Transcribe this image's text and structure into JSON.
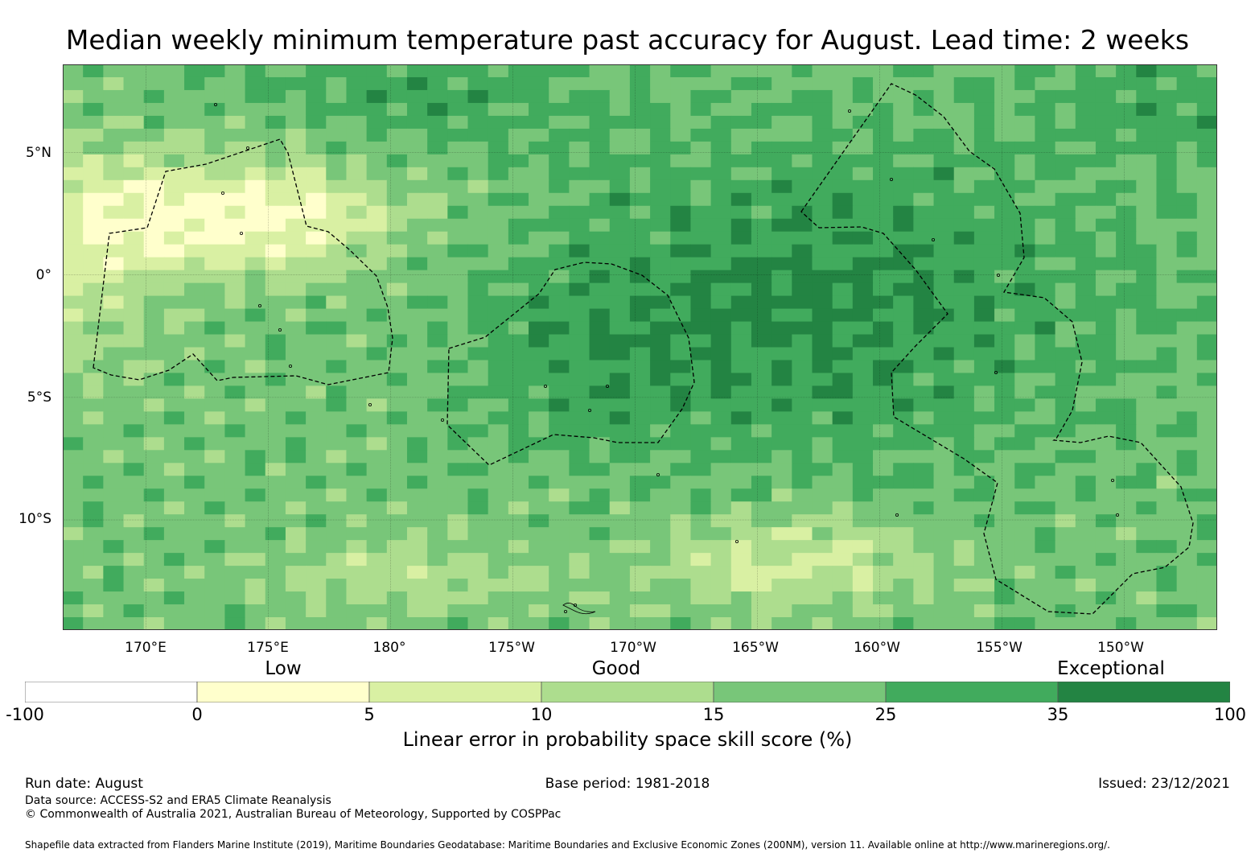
{
  "title": "Median weekly minimum temperature past accuracy for August. Lead time: 2 weeks",
  "map": {
    "lat_labels": [
      "5°N",
      "0°",
      "5°S",
      "10°S"
    ],
    "lon_labels": [
      "170°E",
      "175°E",
      "180°",
      "175°W",
      "170°W",
      "165°W",
      "160°W",
      "155°W",
      "150°W"
    ],
    "lon_values": [
      170,
      175,
      180,
      185,
      190,
      195,
      200,
      205,
      210
    ],
    "lat_values": [
      5,
      0,
      -5,
      -10
    ],
    "extent": {
      "lon_min": 166.6,
      "lon_max": 213.8,
      "lat_min": -14.5,
      "lat_max": 8.6
    },
    "grid": true
  },
  "legend": {
    "categories": [
      {
        "label": "Low",
        "tick_index": 1.5
      },
      {
        "label": "Good",
        "tick_index": 3.5
      },
      {
        "label": "Exceptional",
        "tick_index": 6.3
      }
    ],
    "ticks": [
      "-100",
      "0",
      "5",
      "10",
      "15",
      "25",
      "35",
      "100"
    ],
    "colors": [
      "#ffffff",
      "#ffffcc",
      "#d9f0a3",
      "#addd8e",
      "#78c679",
      "#41ab5d",
      "#238443"
    ],
    "label": "Linear error in probability space skill score (%)"
  },
  "footer": {
    "run_date": "Run date: August",
    "base_period": "Base period: 1981-2018",
    "issued": "Issued: 23/12/2021",
    "data_source": "Data source: ACCESS-S2 and ERA5 Climate Reanalysis",
    "copyright": "© Commonwealth of Australia 2021, Australian Bureau of Meteorology, Supported by COSPPac",
    "shapefile": "Shapefile data extracted from Flanders Marine Institute (2019), Maritime Boundaries Geodatabase: Maritime Boundaries and Exclusive Economic Zones (200NM), version 11. Available online at http://www.marineregions.org/."
  }
}
